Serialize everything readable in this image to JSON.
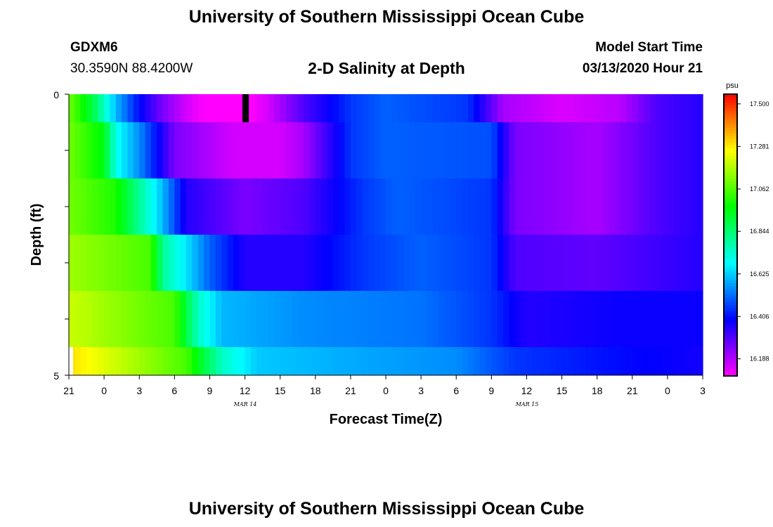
{
  "header": {
    "title": "University of Southern Mississippi Ocean Cube",
    "station": "GDXM6",
    "coords": "30.3590N 88.4200W",
    "subtitle": "2-D Salinity at Depth",
    "start_label": "Model Start Time",
    "start_value": "03/13/2020 Hour 21"
  },
  "footer": {
    "title": "University of Southern Mississippi Ocean Cube"
  },
  "colorbar": {
    "unit": "psu",
    "labels": [
      "17.500",
      "17.281",
      "17.062",
      "16.844",
      "16.625",
      "16.406",
      "16.188"
    ]
  },
  "chart_data": {
    "type": "heatmap",
    "title": "2-D Salinity at Depth",
    "xlabel": "Forecast Time(Z)",
    "ylabel": "Depth (ft)",
    "x_tick_labels": [
      "21",
      "0",
      "3",
      "6",
      "9",
      "12",
      "15",
      "18",
      "21",
      "0",
      "3",
      "6",
      "9",
      "12",
      "15",
      "18",
      "21",
      "0",
      "3"
    ],
    "date_labels": [
      {
        "label": "MAR 14",
        "at_hour": 15
      },
      {
        "label": "MAR 15",
        "at_hour": 39
      }
    ],
    "x_range_hours": [
      0,
      54
    ],
    "y_tick_labels": [
      "0",
      "5"
    ],
    "ylim": [
      0,
      5
    ],
    "depth_bands": [
      {
        "depth": 0.25,
        "knots": [
          [
            0,
            17.1
          ],
          [
            2,
            16.9
          ],
          [
            4,
            16.6
          ],
          [
            6,
            16.4
          ],
          [
            8,
            16.25
          ],
          [
            10,
            16.15
          ],
          [
            13,
            16.05
          ],
          [
            15,
            16.08
          ],
          [
            17,
            16.15
          ],
          [
            20,
            16.3
          ],
          [
            24,
            16.45
          ],
          [
            27,
            16.5
          ],
          [
            34,
            16.45
          ],
          [
            37,
            16.2
          ],
          [
            42,
            16.14
          ],
          [
            47,
            16.18
          ],
          [
            50,
            16.3
          ],
          [
            54,
            16.35
          ]
        ]
      },
      {
        "depth": 1,
        "knots": [
          [
            0,
            17.1
          ],
          [
            3,
            16.95
          ],
          [
            4,
            16.7
          ],
          [
            6,
            16.55
          ],
          [
            9,
            16.25
          ],
          [
            14,
            16.15
          ],
          [
            18,
            16.15
          ],
          [
            20,
            16.2
          ],
          [
            24,
            16.45
          ],
          [
            27,
            16.5
          ],
          [
            36,
            16.48
          ],
          [
            38,
            16.25
          ],
          [
            45,
            16.2
          ],
          [
            50,
            16.3
          ],
          [
            54,
            16.35
          ]
        ]
      },
      {
        "depth": 2,
        "knots": [
          [
            0,
            17.1
          ],
          [
            4,
            17.0
          ],
          [
            6,
            16.8
          ],
          [
            8,
            16.6
          ],
          [
            10,
            16.35
          ],
          [
            15,
            16.25
          ],
          [
            20,
            16.3
          ],
          [
            25,
            16.45
          ],
          [
            28,
            16.5
          ],
          [
            36,
            16.45
          ],
          [
            38,
            16.25
          ],
          [
            45,
            16.2
          ],
          [
            50,
            16.3
          ],
          [
            54,
            16.35
          ]
        ]
      },
      {
        "depth": 3,
        "knots": [
          [
            0,
            17.15
          ],
          [
            7,
            17.05
          ],
          [
            8,
            16.8
          ],
          [
            10,
            16.65
          ],
          [
            12,
            16.5
          ],
          [
            15,
            16.35
          ],
          [
            20,
            16.35
          ],
          [
            25,
            16.45
          ],
          [
            30,
            16.5
          ],
          [
            36,
            16.45
          ],
          [
            38,
            16.3
          ],
          [
            45,
            16.28
          ],
          [
            50,
            16.32
          ],
          [
            54,
            16.35
          ]
        ]
      },
      {
        "depth": 4,
        "knots": [
          [
            0,
            17.2
          ],
          [
            9,
            17.05
          ],
          [
            11,
            16.75
          ],
          [
            13,
            16.6
          ],
          [
            20,
            16.55
          ],
          [
            30,
            16.52
          ],
          [
            36,
            16.45
          ],
          [
            39,
            16.35
          ],
          [
            47,
            16.38
          ],
          [
            54,
            16.38
          ]
        ]
      },
      {
        "depth": 4.75,
        "knots": [
          [
            0,
            17.3
          ],
          [
            10,
            17.05
          ],
          [
            13,
            16.75
          ],
          [
            16,
            16.62
          ],
          [
            25,
            16.58
          ],
          [
            33,
            16.55
          ],
          [
            38,
            16.45
          ],
          [
            47,
            16.4
          ],
          [
            54,
            16.37
          ]
        ]
      }
    ],
    "value_range": [
      16.1,
      17.55
    ]
  }
}
